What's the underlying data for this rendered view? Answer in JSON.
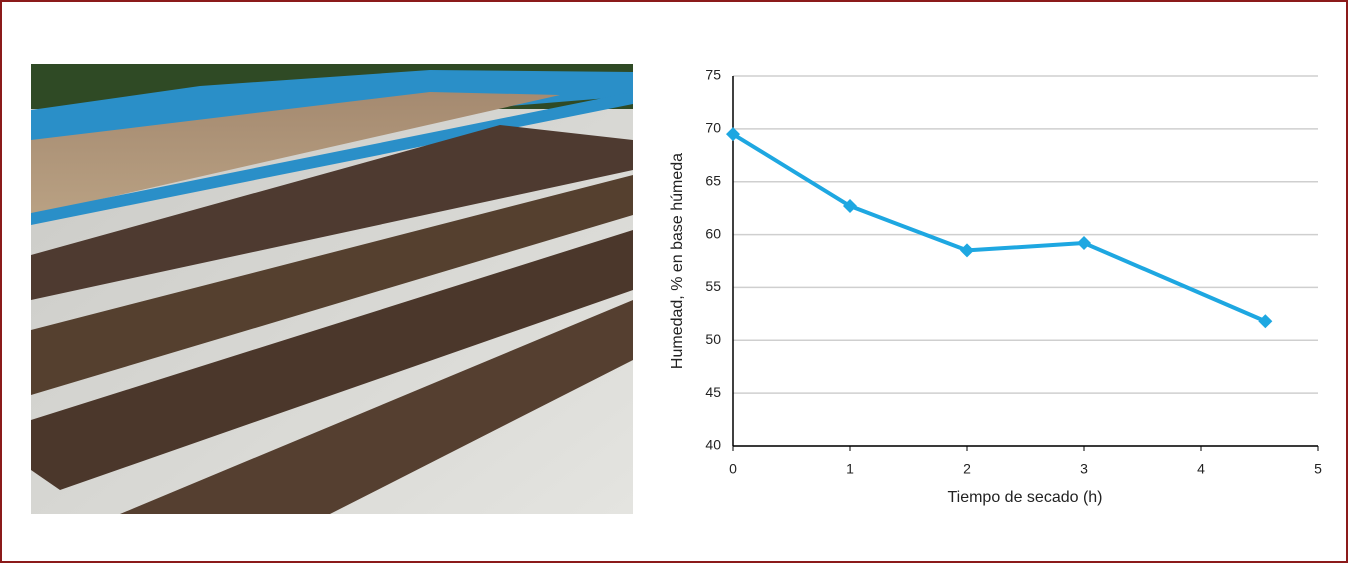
{
  "chart_data": {
    "type": "line",
    "xlabel": "Tiempo de secado (h)",
    "ylabel": "Humedad, % en base húmeda",
    "x": [
      0,
      1,
      2,
      3,
      4.55
    ],
    "values": [
      69.5,
      62.7,
      58.5,
      59.2,
      51.8
    ],
    "color": "#1ea7e1",
    "xlim": [
      0,
      5
    ],
    "xticks": [
      0,
      1,
      2,
      3,
      4,
      5
    ],
    "ylim": [
      40,
      75
    ],
    "yticks": [
      40,
      45,
      50,
      55,
      60,
      65,
      70,
      75
    ],
    "grid": true
  }
}
